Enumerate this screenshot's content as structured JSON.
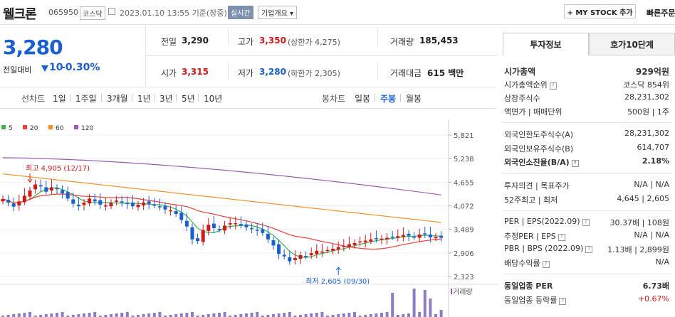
{
  "header": {
    "name": "웰크론",
    "code": "065950",
    "market": "코스닥",
    "datetime": "2023.01.10 13:55",
    "basis": "기준(장중)",
    "realtime": "실시간",
    "company_btn": "기업개요",
    "mystock_btn": "+ MY STOCK 추가",
    "quick_btn": "빠른주문"
  },
  "price": {
    "current": "3,280",
    "change_label": "전일대비",
    "change_val": "10",
    "change_pct": "-0.30%",
    "prev_label": "전일",
    "prev": "3,290",
    "high_label": "고가",
    "high": "3,350",
    "upper_limit": "(상한가 4,275)",
    "volume_label": "거래량",
    "volume": "185,453",
    "open_label": "시가",
    "open": "3,315",
    "low_label": "저가",
    "low": "3,280",
    "lower_limit": "(하한가 2,305)",
    "amount_label": "거래대금",
    "amount": "615 백만",
    "colors": {
      "down": "#1a5fcf",
      "up": "#d01a1a"
    }
  },
  "toolbar": {
    "line_chart": "선차트",
    "line_items": [
      "1일",
      "1주일",
      "3개월",
      "1년",
      "3년",
      "5년",
      "10년"
    ],
    "bong_chart": "봉차트",
    "bong_items": [
      "일봉",
      "주봉",
      "월봉"
    ],
    "active_bong": "주봉"
  },
  "chart_data": {
    "type": "candlestick",
    "legend": [
      {
        "name": "5",
        "color": "#3cb24a"
      },
      {
        "name": "20",
        "color": "#e8403a"
      },
      {
        "name": "60",
        "color": "#f0932b"
      },
      {
        "name": "120",
        "color": "#9b59b6"
      }
    ],
    "y_ticks": [
      "5,821",
      "5,238",
      "4,655",
      "4,072",
      "3,489",
      "2,906",
      "2,323"
    ],
    "ylim": [
      2323,
      5821
    ],
    "annotations": {
      "high": "최고 4,905 (12/17)",
      "low": "최저 2,605 (09/30)"
    },
    "volume_label": "거래량"
  },
  "invest": {
    "tabs": [
      "투자정보",
      "호가10단계"
    ],
    "market_cap_label": "시가총액",
    "market_cap": "929억원",
    "rank_label": "시가총액순위",
    "rank": "코스닥 854위",
    "shares_label": "상장주식수",
    "shares": "28,231,302",
    "par_label": "액면가 | 매매단위",
    "par": "500원 | 1주",
    "foreign_limit_label": "외국인한도주식수(A)",
    "foreign_limit": "28,231,302",
    "foreign_hold_label": "외국인보유주식수(B)",
    "foreign_hold": "614,707",
    "foreign_ratio_label": "외국인소진율(B/A)",
    "foreign_ratio": "2.18%",
    "opinion_label": "투자의견 | 목표주가",
    "opinion": "N/A | N/A",
    "week52_label": "52주최고 | 최저",
    "week52": "4,645 | 2,605",
    "per_label": "PER | EPS(2022.09)",
    "per": "30.37배 | 108원",
    "est_per_label": "추정PER | EPS",
    "est_per": "N/A | N/A",
    "pbr_label": "PBR | BPS (2022.09)",
    "pbr": "1.13배 | 2,899원",
    "div_label": "배당수익률",
    "div": "N/A",
    "sector_per_label": "동일업종 PER",
    "sector_per": "6.73배",
    "sector_chg_label": "동일업종 등락률",
    "sector_chg": "+0.67%"
  }
}
